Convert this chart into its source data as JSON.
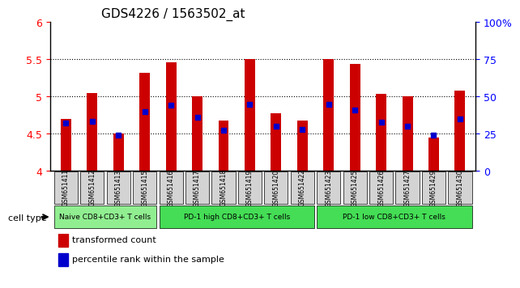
{
  "title": "GDS4226 / 1563502_at",
  "samples": [
    "GSM651411",
    "GSM651412",
    "GSM651413",
    "GSM651415",
    "GSM651416",
    "GSM651417",
    "GSM651418",
    "GSM651419",
    "GSM651420",
    "GSM651422",
    "GSM651423",
    "GSM651425",
    "GSM651426",
    "GSM651427",
    "GSM651429",
    "GSM651430"
  ],
  "transformed_count": [
    4.7,
    5.05,
    4.5,
    5.32,
    5.46,
    5.0,
    4.68,
    5.5,
    4.78,
    4.68,
    5.5,
    5.44,
    5.04,
    5.0,
    4.45,
    5.08
  ],
  "percentile_rank": [
    4.65,
    4.67,
    4.48,
    4.8,
    4.88,
    4.72,
    4.55,
    4.9,
    4.6,
    4.56,
    4.9,
    4.82,
    4.66,
    4.6,
    4.48,
    4.7
  ],
  "ylim_left": [
    4.0,
    6.0
  ],
  "yticks_left": [
    4.0,
    4.5,
    5.0,
    5.5,
    6.0
  ],
  "ytick_labels_left": [
    "4",
    "4.5",
    "5",
    "5.5",
    "6"
  ],
  "yticks_right": [
    0,
    25,
    50,
    75,
    100
  ],
  "ytick_labels_right": [
    "0",
    "25",
    "50",
    "75",
    "100%"
  ],
  "bar_color": "#cc0000",
  "dot_color": "#0000cc",
  "bar_width": 0.4,
  "groups": [
    {
      "label": "Naive CD8+CD3+ T cells",
      "start": 0,
      "end": 3,
      "color": "#90ee90"
    },
    {
      "label": "PD-1 high CD8+CD3+ T cells",
      "start": 4,
      "end": 9,
      "color": "#44dd55"
    },
    {
      "label": "PD-1 low CD8+CD3+ T cells",
      "start": 10,
      "end": 15,
      "color": "#44dd55"
    }
  ],
  "legend": [
    {
      "label": "transformed count",
      "color": "#cc0000"
    },
    {
      "label": "percentile rank within the sample",
      "color": "#0000cc"
    }
  ]
}
